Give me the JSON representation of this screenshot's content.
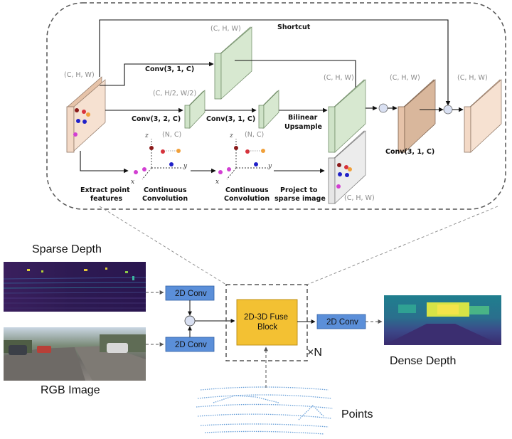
{
  "detail": {
    "shortcut_label": "Shortcut",
    "tensor_chw": "(C, H, W)",
    "tensor_half": "(C, H/2, W/2)",
    "points_nc": "(N, C)",
    "conv_31c": "Conv(3, 1, C)",
    "conv_32c": "Conv(3, 2, C)",
    "bilinear_line1": "Bilinear",
    "bilinear_line2": "Upsample",
    "extract_line1": "Extract point",
    "extract_line2": "features",
    "cont_conv_line1": "Continuous",
    "cont_conv_line2": "Convolution",
    "project_line1": "Project to",
    "project_line2": "sparse image",
    "axis_x": "x",
    "axis_y": "y",
    "axis_z": "z"
  },
  "overview": {
    "sparse_depth_label": "Sparse Depth",
    "rgb_image_label": "RGB Image",
    "conv2d_label": "2D Conv",
    "fuse_line1": "2D-3D Fuse",
    "fuse_line2": "Block",
    "repeat_label": "×N",
    "dense_depth_label": "Dense Depth",
    "points_label": "Points"
  },
  "colors": {
    "beige_block": "#f3d9c6",
    "green_block": "#cfe3c8",
    "blue_box": "#5b8fd9",
    "fuse_yellow": "#f3c133",
    "point_blue": "#6aa0d8"
  }
}
